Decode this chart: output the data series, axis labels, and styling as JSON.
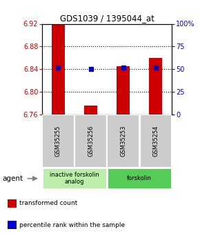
{
  "title": "GDS1039 / 1395044_at",
  "samples": [
    "GSM35255",
    "GSM35256",
    "GSM35253",
    "GSM35254"
  ],
  "bar_values": [
    6.919,
    6.775,
    6.845,
    6.86
  ],
  "bar_base": 6.76,
  "percentile_values": [
    6.843,
    6.84,
    6.843,
    6.843
  ],
  "ylim": [
    6.76,
    6.92
  ],
  "yticks": [
    6.76,
    6.8,
    6.84,
    6.88,
    6.92
  ],
  "right_yticks": [
    0,
    25,
    50,
    75,
    100
  ],
  "groups": [
    {
      "label": "inactive forskolin\nanalog",
      "color": "#bbeeaa",
      "start": 0,
      "end": 2
    },
    {
      "label": "forskolin",
      "color": "#55cc55",
      "start": 2,
      "end": 4
    }
  ],
  "bar_color": "#cc0000",
  "dot_color": "#0000cc",
  "left_tick_color": "#cc0000",
  "right_tick_color": "#0000cc",
  "sample_box_color": "#cccccc",
  "agent_label": "agent",
  "legend_items": [
    {
      "color": "#cc0000",
      "label": "transformed count"
    },
    {
      "color": "#0000cc",
      "label": "percentile rank within the sample"
    }
  ]
}
